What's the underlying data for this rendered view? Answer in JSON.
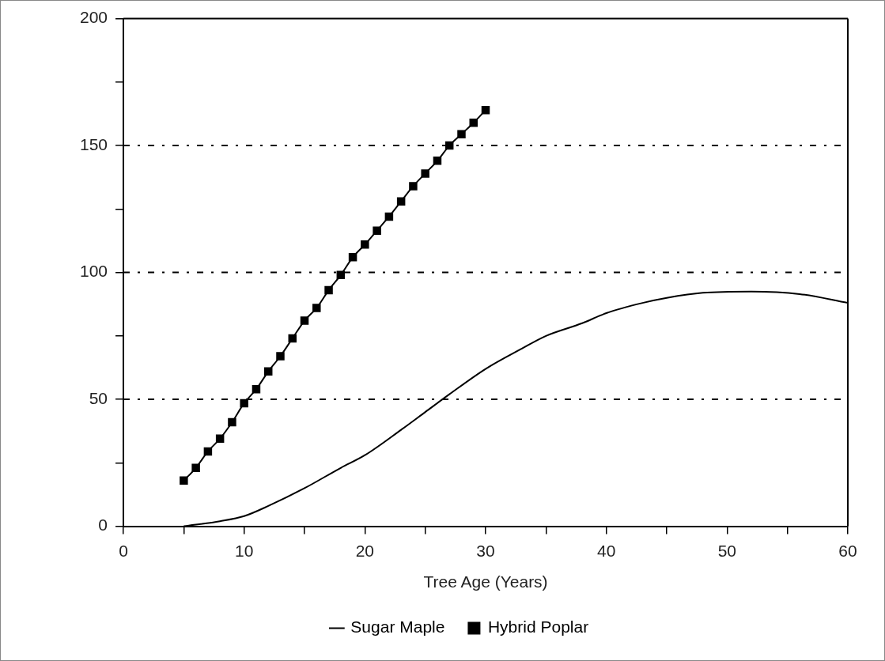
{
  "chart_data": {
    "type": "line",
    "xlabel": "Tree Age (Years)",
    "xlim": [
      0,
      60
    ],
    "xticks": [
      0,
      {
        "value": 5,
        "label": null
      },
      10,
      {
        "value": 15,
        "label": null
      },
      20,
      {
        "value": 25,
        "label": null
      },
      30,
      {
        "value": 35,
        "label": null
      },
      40,
      {
        "value": 45,
        "label": null
      },
      50,
      {
        "value": 55,
        "label": null
      },
      60
    ],
    "ylim": [
      0,
      200
    ],
    "yticks": [
      0,
      {
        "value": 25,
        "label": null
      },
      50,
      {
        "value": 75,
        "label": null
      },
      100,
      {
        "value": 125,
        "label": null
      },
      150,
      {
        "value": 175,
        "label": null
      },
      200
    ],
    "grid": "y",
    "legend": "bottom",
    "series": [
      {
        "name": "Sugar Maple",
        "color": "#000000",
        "marker": "none",
        "line_style": "solid",
        "x": [
          5,
          8,
          10,
          12,
          15,
          18,
          20,
          23,
          25,
          27,
          30,
          33,
          35,
          38,
          40,
          43,
          45,
          48,
          52,
          56,
          60
        ],
        "values": [
          0,
          2,
          4,
          8,
          15,
          23,
          28,
          38,
          45,
          52,
          62,
          70,
          75,
          80,
          84,
          88,
          90,
          92,
          92.5,
          91.5,
          88
        ]
      },
      {
        "name": "Hybrid Poplar",
        "color": "#000000",
        "marker": "square",
        "line_style": "solid",
        "x": [
          5,
          6,
          7,
          8,
          9,
          10,
          11,
          12,
          13,
          14,
          15,
          16,
          17,
          18,
          19,
          20,
          21,
          22,
          23,
          24,
          25,
          26,
          27,
          28,
          29,
          30
        ],
        "values": [
          18,
          23,
          29.5,
          34.5,
          41,
          48.5,
          54,
          61,
          67,
          74,
          81,
          86,
          93,
          99,
          106,
          111,
          116.5,
          122,
          128,
          134,
          139,
          144,
          150,
          154.5,
          159,
          164
        ]
      }
    ]
  }
}
